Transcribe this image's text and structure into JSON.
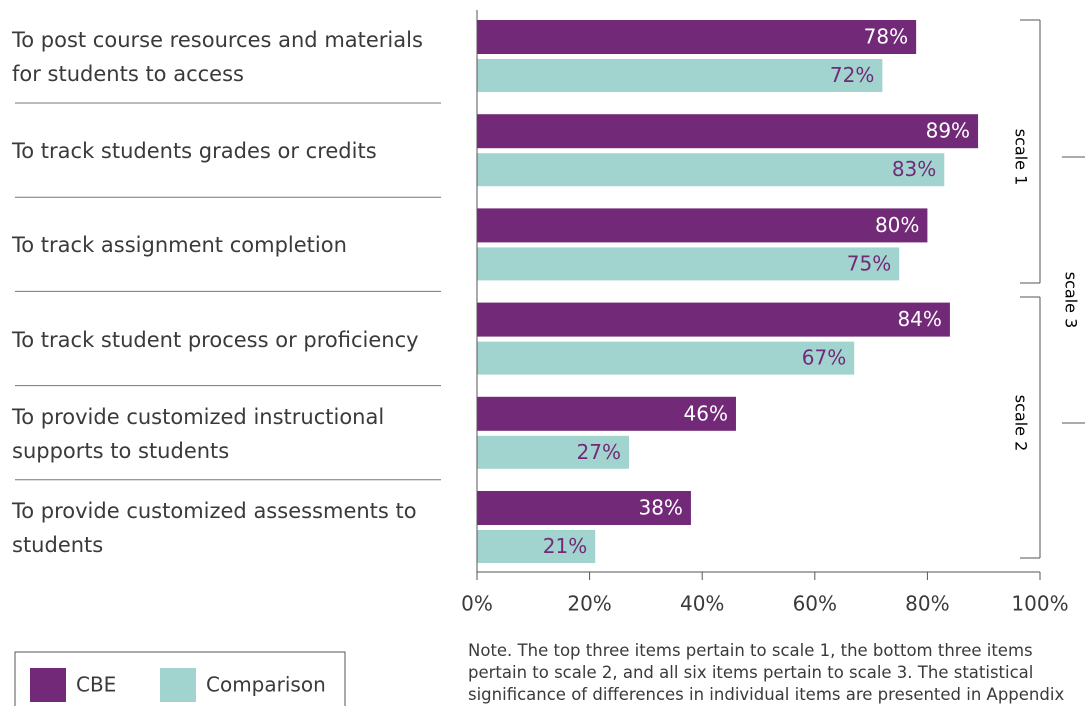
{
  "chart_data": {
    "type": "hbar",
    "categories": [
      "To post course resources and materials for students to access",
      "To track students grades or credits",
      "To track assignment completion",
      "To track student process or proficiency",
      "To provide customized instructional supports to students",
      "To provide customized assessments to students"
    ],
    "series": [
      {
        "name": "CBE",
        "color": "#722a78",
        "values": [
          78,
          89,
          80,
          84,
          46,
          38
        ],
        "value_labels": [
          "78%",
          "89%",
          "80%",
          "84%",
          "46%",
          "38%"
        ]
      },
      {
        "name": "Comparison",
        "color": "#a2d4cf",
        "values": [
          72,
          83,
          75,
          67,
          27,
          21
        ],
        "value_labels": [
          "72%",
          "83%",
          "75%",
          "67%",
          "27%",
          "21%"
        ]
      }
    ],
    "xlim": [
      0,
      100
    ],
    "xticks": [
      {
        "value": 0,
        "label": "0%"
      },
      {
        "value": 20,
        "label": "20%"
      },
      {
        "value": 40,
        "label": "40%"
      },
      {
        "value": 60,
        "label": "60%"
      },
      {
        "value": 80,
        "label": "80%"
      },
      {
        "value": 100,
        "label": "100%"
      }
    ],
    "annotations": [
      "scale 1",
      "scale 2",
      "scale 3"
    ],
    "note": "Note. The top three items pertain to scale 1, the bottom three items pertain to scale 2, and all six items pertain to scale 3. The statistical significance of differences in individual items are presented in Appendix"
  }
}
